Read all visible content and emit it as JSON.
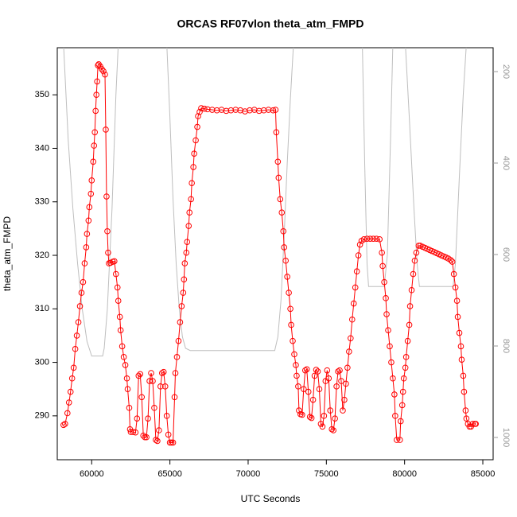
{
  "chart_data": {
    "type": "line",
    "title": "ORCAS RF07vlon theta_atm_FMPD",
    "xlabel": "UTC Seconds",
    "ylabel": "theta_atm_FMPD",
    "xlim": [
      57800,
      85660
    ],
    "xticks": [
      60000,
      65000,
      70000,
      75000,
      80000,
      85000
    ],
    "ylim": [
      281.8,
      358.8
    ],
    "yticks": [
      290,
      300,
      310,
      320,
      330,
      340,
      350
    ],
    "y2lim": [
      1048.7,
      147.8
    ],
    "y2ticks": [
      200,
      400,
      600,
      800,
      1000
    ],
    "grid": false,
    "series": [
      {
        "color": "#ff0000",
        "marker": "open-circle",
        "x": [
          58200,
          58300,
          58450,
          58550,
          58650,
          58750,
          58850,
          58950,
          59050,
          59150,
          59250,
          59350,
          59450,
          59550,
          59650,
          59700,
          59800,
          59850,
          59950,
          60000,
          60100,
          60150,
          60200,
          60250,
          60300,
          60350,
          60400,
          60450,
          60550,
          60650,
          60750,
          60850,
          60900,
          60950,
          61000,
          61050,
          61100,
          61200,
          61350,
          61450,
          61550,
          61650,
          61700,
          61800,
          61850,
          61950,
          62050,
          62150,
          62250,
          62300,
          62400,
          62450,
          62500,
          62650,
          62800,
          62900,
          63000,
          63100,
          63200,
          63300,
          63400,
          63500,
          63600,
          63700,
          63800,
          63900,
          64000,
          64100,
          64200,
          64300,
          64400,
          64500,
          64600,
          64700,
          64800,
          64900,
          65000,
          65100,
          65200,
          65300,
          65350,
          65450,
          65550,
          65650,
          65750,
          65850,
          65900,
          65950,
          66050,
          66100,
          66200,
          66250,
          66350,
          66400,
          66500,
          66550,
          66650,
          66750,
          66800,
          66900,
          67000,
          67200,
          67400,
          67700,
          68000,
          68300,
          68600,
          68900,
          69200,
          69500,
          69800,
          70100,
          70400,
          70700,
          71000,
          71300,
          71600,
          71750,
          71800,
          71900,
          71950,
          72050,
          72150,
          72250,
          72300,
          72400,
          72500,
          72600,
          72700,
          72750,
          72850,
          72950,
          73050,
          73100,
          73200,
          73250,
          73350,
          73450,
          73550,
          73650,
          73750,
          73850,
          73950,
          74050,
          74150,
          74250,
          74350,
          74450,
          74550,
          74650,
          74750,
          74850,
          74950,
          75050,
          75150,
          75250,
          75350,
          75450,
          75550,
          75650,
          75750,
          75850,
          75950,
          76050,
          76150,
          76250,
          76350,
          76450,
          76550,
          76650,
          76750,
          76850,
          76950,
          77050,
          77150,
          77250,
          77400,
          77600,
          77800,
          78000,
          78200,
          78400,
          78550,
          78600,
          78700,
          78800,
          78850,
          78950,
          79050,
          79150,
          79250,
          79350,
          79400,
          79500,
          79700,
          79750,
          79850,
          79900,
          79950,
          80050,
          80100,
          80200,
          80300,
          80350,
          80450,
          80550,
          80650,
          80750,
          80900,
          81000,
          81150,
          81300,
          81450,
          81600,
          81750,
          81900,
          82050,
          82200,
          82350,
          82500,
          82650,
          82800,
          82950,
          83050,
          83150,
          83250,
          83350,
          83400,
          83500,
          83600,
          83650,
          83750,
          83800,
          83900,
          83950,
          84050,
          84150,
          84250,
          84350,
          84500,
          84550
        ],
        "values": [
          288.3,
          288.5,
          290.5,
          292.5,
          294.5,
          297,
          299,
          302.5,
          305,
          307.5,
          310.5,
          313,
          315,
          318.5,
          321.5,
          324,
          326.5,
          329,
          331.5,
          334,
          337.5,
          340.5,
          343,
          347,
          350,
          352.5,
          355.5,
          355.7,
          355.3,
          354.8,
          354.4,
          353.8,
          343.5,
          331,
          324.5,
          320.5,
          318.5,
          318.6,
          318.8,
          318.9,
          316.5,
          314,
          311.5,
          308.5,
          306,
          303,
          301,
          299.5,
          297,
          295,
          291.5,
          287.5,
          287,
          287,
          286.9,
          289.5,
          297.5,
          297.8,
          293.5,
          286.3,
          286,
          286,
          289.5,
          296.5,
          298,
          296.5,
          291.5,
          285.5,
          285.3,
          287.3,
          295.5,
          298,
          298.2,
          295.5,
          290,
          286.5,
          285,
          285,
          285,
          293.5,
          298,
          301,
          304,
          307.5,
          310.5,
          313,
          315.5,
          318.5,
          320.5,
          322.5,
          325.5,
          328,
          330.5,
          333.5,
          336.5,
          339,
          341.5,
          344,
          346,
          346.8,
          347.5,
          347.4,
          347.3,
          347.2,
          347.1,
          347.2,
          347,
          347.1,
          347.2,
          347.1,
          346.9,
          347.1,
          347.2,
          347,
          347.1,
          347.2,
          347.1,
          347.2,
          343,
          337.5,
          334.5,
          330.5,
          328,
          324.5,
          321.5,
          319,
          316,
          313,
          310,
          307,
          304,
          301.5,
          299.5,
          297.5,
          295.5,
          291,
          290.3,
          290.2,
          295,
          298.5,
          298.7,
          294.5,
          289.8,
          289.6,
          293,
          297.5,
          298.6,
          298.3,
          295,
          288.5,
          288,
          290,
          296.5,
          298.5,
          297,
          291,
          287.5,
          287.3,
          289.5,
          295.5,
          298.3,
          298.5,
          296.5,
          291,
          293,
          296,
          299,
          302,
          304.5,
          308,
          311,
          314,
          317,
          320,
          322,
          322.7,
          323,
          323.1,
          323.1,
          323.1,
          323.1,
          323,
          320.5,
          318,
          315,
          312,
          309,
          306,
          303,
          300,
          297,
          294,
          290,
          285.5,
          285.5,
          289,
          292,
          294.5,
          297,
          299,
          301,
          304,
          307,
          310.5,
          313.5,
          316.5,
          319,
          320.5,
          321.8,
          321.8,
          321.6,
          321.4,
          321.2,
          321,
          320.8,
          320.6,
          320.4,
          320.2,
          320,
          319.8,
          319.6,
          319.4,
          319.1,
          318.8,
          316.5,
          314,
          311.5,
          308.5,
          305.5,
          303,
          300.5,
          297.5,
          294.5,
          291,
          289.5,
          288.5,
          288,
          288,
          288.5,
          288.5,
          288.5
        ]
      },
      {
        "color": "#bebebe",
        "axis": "y2",
        "x": [
          58200,
          58500,
          58800,
          59100,
          59400,
          59700,
          60000,
          60100,
          60700,
          60800,
          61000,
          61300,
          61550,
          61700,
          64800,
          65000,
          65200,
          65400,
          65600,
          65800,
          66000,
          66300,
          66700,
          67000,
          71700,
          71900,
          72100,
          72300,
          72500,
          72700,
          72900,
          77300,
          77450,
          77600,
          77700,
          78600,
          78700,
          78900,
          79100,
          79250,
          80050,
          80300,
          80600,
          80800,
          80950,
          83100,
          83250,
          83500,
          83750,
          83950
        ],
        "values": [
          140,
          350,
          500,
          620,
          720,
          790,
          822,
          822,
          822,
          805,
          720,
          500,
          250,
          140,
          140,
          300,
          480,
          620,
          720,
          780,
          805,
          810,
          810,
          810,
          810,
          780,
          700,
          560,
          400,
          260,
          140,
          140,
          400,
          620,
          670,
          670,
          670,
          600,
          350,
          140,
          140,
          300,
          500,
          620,
          670,
          670,
          620,
          430,
          250,
          140
        ]
      }
    ]
  }
}
